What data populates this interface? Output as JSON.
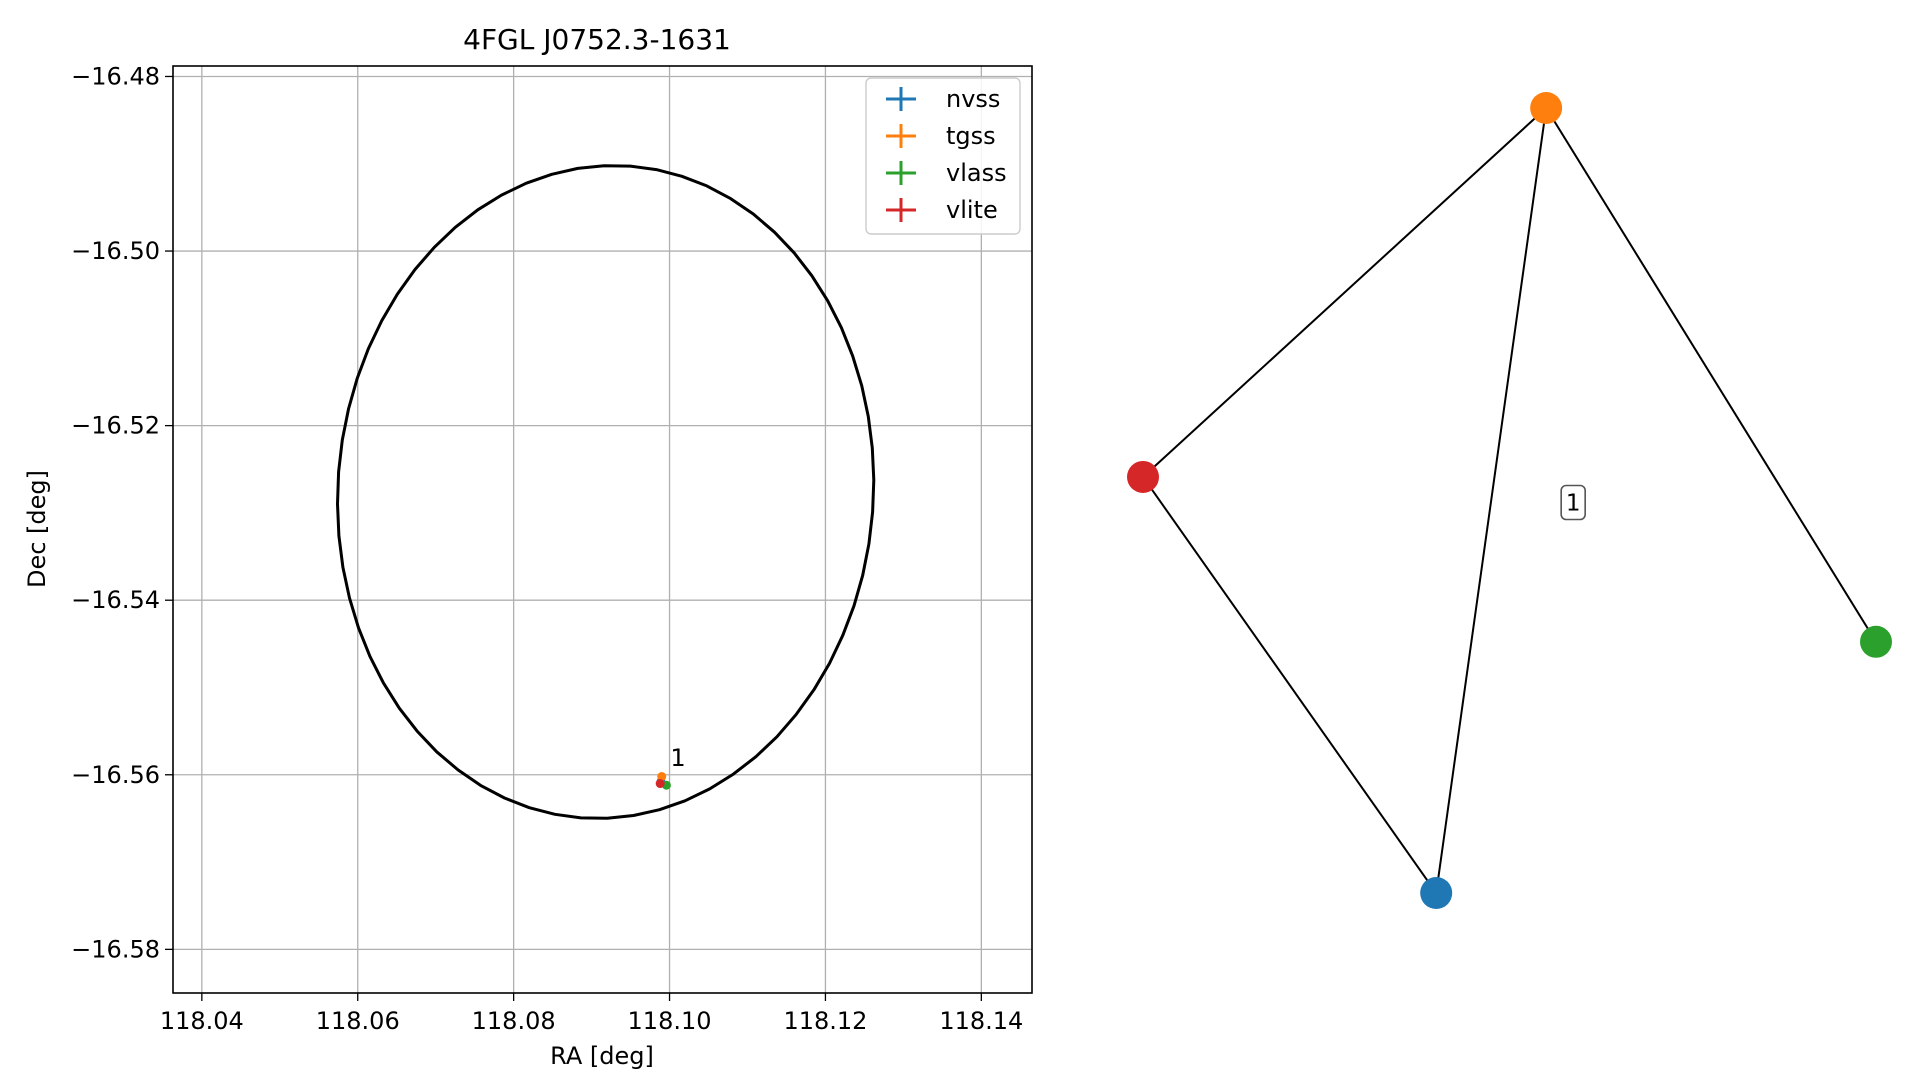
{
  "chart_data": [
    {
      "type": "scatter",
      "title": "4FGL J0752.3-1631",
      "xlabel": "RA [deg]",
      "ylabel": "Dec [deg]",
      "xlim": [
        118.0363,
        118.1465
      ],
      "ylim": [
        -16.585,
        -16.4788
      ],
      "x_ticks": [
        118.04,
        118.06,
        118.08,
        118.1,
        118.12,
        118.14
      ],
      "x_tick_labels": [
        "118.04",
        "118.06",
        "118.08",
        "118.10",
        "118.12",
        "118.14"
      ],
      "y_ticks": [
        -16.48,
        -16.5,
        -16.52,
        -16.54,
        -16.56,
        -16.58
      ],
      "y_tick_labels": [
        "−16.48",
        "−16.50",
        "−16.52",
        "−16.54",
        "−16.56",
        "−16.58"
      ],
      "grid": true,
      "legend_position": "top-right",
      "ellipse": {
        "center_ra": 118.0918,
        "center_dec": -16.5276,
        "semi_axis_ra": 0.0343,
        "semi_axis_dec": 0.0375,
        "tilt_deg": -10,
        "color": "#000000"
      },
      "series": [
        {
          "name": "nvss",
          "color": "#1f77b4",
          "x": [
            118.0989
          ],
          "y": [
            -16.5608
          ]
        },
        {
          "name": "tgss",
          "color": "#ff7f0e",
          "x": [
            118.099
          ],
          "y": [
            -16.5602
          ]
        },
        {
          "name": "vlass",
          "color": "#2ca02c",
          "x": [
            118.0996
          ],
          "y": [
            -16.5612
          ]
        },
        {
          "name": "vlite",
          "color": "#d62728",
          "x": [
            118.0988
          ],
          "y": [
            -16.561
          ]
        }
      ],
      "annotations": [
        {
          "text": "1",
          "x": 118.1001,
          "y": -16.559
        }
      ]
    },
    {
      "type": "graph",
      "nodes": [
        {
          "id": "tgss",
          "color": "#ff7f0e",
          "x": 0.55,
          "y": 1.0
        },
        {
          "id": "vlite",
          "color": "#d62728",
          "x": 0.0,
          "y": 0.53
        },
        {
          "id": "vlass",
          "color": "#2ca02c",
          "x": 1.0,
          "y": 0.32
        },
        {
          "id": "nvss",
          "color": "#1f77b4",
          "x": 0.4,
          "y": 0.0
        }
      ],
      "edges": [
        {
          "source": "tgss",
          "target": "vlite"
        },
        {
          "source": "tgss",
          "target": "vlass"
        },
        {
          "source": "tgss",
          "target": "nvss"
        },
        {
          "source": "vlite",
          "target": "nvss"
        }
      ],
      "edge_label": {
        "text": "1",
        "edge": [
          "tgss",
          "nvss"
        ]
      }
    }
  ]
}
